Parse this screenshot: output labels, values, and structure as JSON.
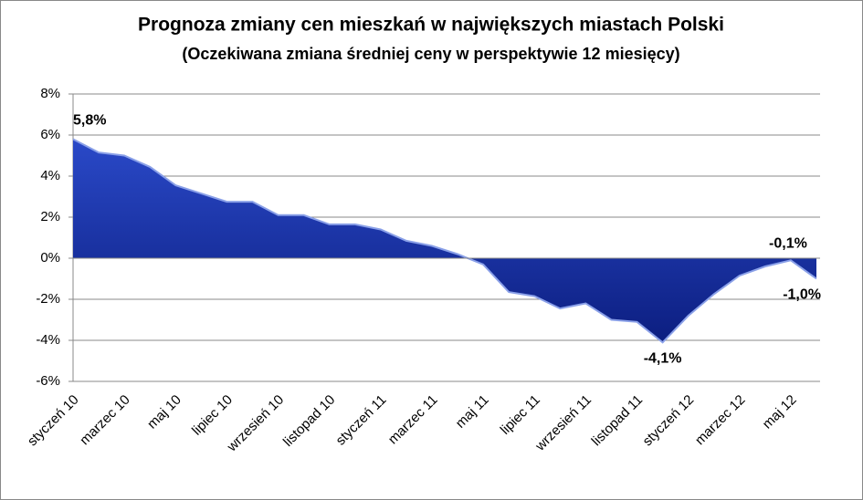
{
  "chart_data": {
    "type": "area",
    "title": "Prognoza zmiany cen mieszkań w największych miastach Polski",
    "subtitle": "(Oczekiwana zmiana średniej ceny w perspektywie 12 miesięcy)",
    "categories": [
      "styczeń 10",
      null,
      "marzec 10",
      null,
      "maj 10",
      null,
      "lipiec 10",
      null,
      "wrzesień 10",
      null,
      "listopad 10",
      null,
      "styczeń 11",
      null,
      "marzec 11",
      null,
      "maj 11",
      null,
      "lipiec 11",
      null,
      "wrzesień 11",
      null,
      "listopad 11",
      null,
      "styczeń 12",
      null,
      "marzec 12",
      null,
      "maj 12",
      null
    ],
    "values": [
      5.8,
      5.15,
      5.0,
      4.45,
      3.55,
      3.15,
      2.75,
      2.75,
      2.1,
      2.1,
      1.65,
      1.65,
      1.4,
      0.85,
      0.6,
      0.2,
      -0.3,
      -1.65,
      -1.85,
      -2.45,
      -2.2,
      -3.0,
      -3.1,
      -4.1,
      -2.8,
      -1.75,
      -0.85,
      -0.4,
      -0.1,
      -1.0
    ],
    "value_labels": [
      "5,8%",
      null,
      null,
      null,
      null,
      null,
      null,
      null,
      null,
      null,
      null,
      null,
      null,
      null,
      null,
      null,
      null,
      null,
      null,
      null,
      null,
      null,
      null,
      "-4,1%",
      null,
      null,
      null,
      null,
      "-0,1%",
      "-1,0%"
    ],
    "color": "#1a33a8",
    "ylim": [
      -6,
      8
    ],
    "yticks": [
      {
        "value": -6,
        "label": "-6%"
      },
      {
        "value": -4,
        "label": "-4%"
      },
      {
        "value": -2,
        "label": "-2%"
      },
      {
        "value": 0,
        "label": "0%"
      },
      {
        "value": 2,
        "label": "2%"
      },
      {
        "value": 4,
        "label": "4%"
      },
      {
        "value": 6,
        "label": "6%"
      },
      {
        "value": 8,
        "label": "8%"
      }
    ],
    "grid": true
  }
}
